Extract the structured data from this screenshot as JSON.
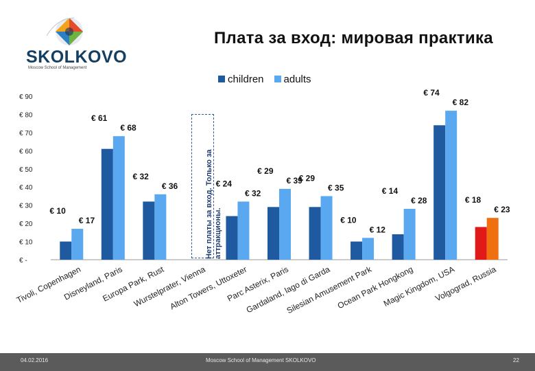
{
  "slide": {
    "title": "Плата за вход: мировая практика",
    "brand": "SKOLKOVO",
    "brand_sub": "Moscow School of Management",
    "date": "04.02.2016",
    "footer_center": "Moscow School of Management SKOLKOVO",
    "page_number": "22",
    "no_fee_note": "Нет платы за вход. Только за аттракционы."
  },
  "colors": {
    "children": "#1f5aa0",
    "adults": "#5aa9f0",
    "russia_children": "#e11919",
    "russia_adults": "#f07010"
  },
  "chart_data": {
    "type": "bar",
    "title": "",
    "legend": [
      "children",
      "adults"
    ],
    "legend_position": "top",
    "ylim": [
      0,
      90
    ],
    "y_ticks": [
      "€ -",
      "€ 10",
      "€ 20",
      "€ 30",
      "€ 40",
      "€ 50",
      "€ 60",
      "€ 70",
      "€ 80",
      "€ 90"
    ],
    "categories": [
      "Tivoli, Copenhagen",
      "Disneyland, Paris",
      "Europa Park, Rust",
      "Wurstelprater, Vienna",
      "Alton Towers, Uttoxeter",
      "Parc Asterix, Paris",
      "Gardaland, lago di Garda",
      "Silesian Amusement Park",
      "Ocean Park Hongkong",
      "Magic Kingdom, USA",
      "Volgograd, Russia"
    ],
    "series": [
      {
        "name": "children",
        "values": [
          10,
          61,
          32,
          0,
          24,
          29,
          29,
          10,
          14,
          74,
          18
        ]
      },
      {
        "name": "adults",
        "values": [
          17,
          68,
          36,
          0,
          32,
          39,
          35,
          12,
          28,
          82,
          23
        ]
      }
    ],
    "data_labels": {
      "children": [
        "€ 10",
        "€ 61",
        "€ 32",
        "",
        "€ 24",
        "€ 29",
        "€ 29",
        "€ 10",
        "€ 14",
        "€ 74",
        "€ 18"
      ],
      "adults": [
        "€ 17",
        "€ 68",
        "€ 36",
        "",
        "€ 32",
        "€ 39",
        "€ 35",
        "€ 12",
        "€ 28",
        "€ 82",
        "€ 23"
      ]
    }
  }
}
